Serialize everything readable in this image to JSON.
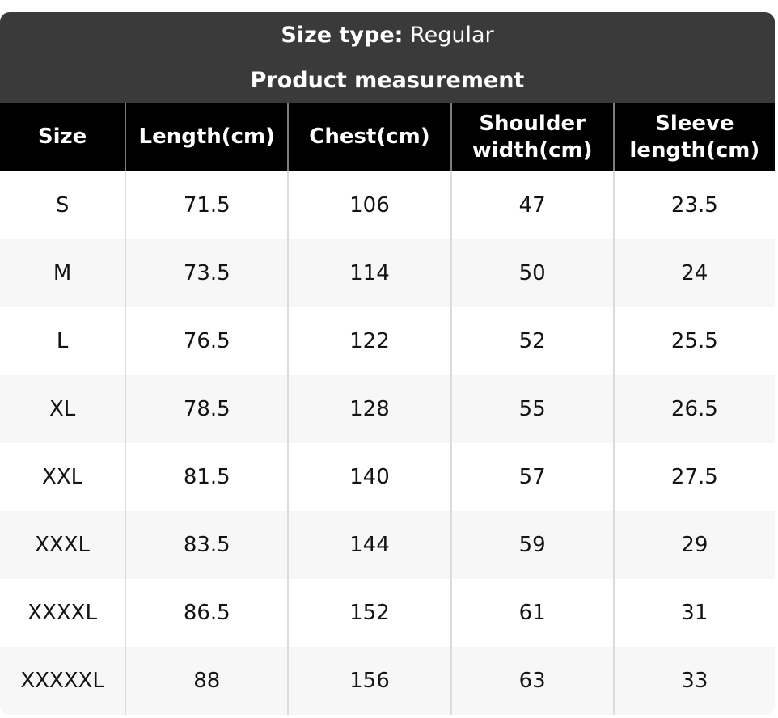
{
  "header": {
    "size_type_label": "Size type:",
    "size_type_value": " Regular",
    "subtitle": "Product measurement"
  },
  "table": {
    "columns": [
      "Size",
      "Length(cm)",
      "Chest(cm)",
      "Shoulder width(cm)",
      "Sleeve length(cm)"
    ],
    "rows": [
      [
        "S",
        "71.5",
        "106",
        "47",
        "23.5"
      ],
      [
        "M",
        "73.5",
        "114",
        "50",
        "24"
      ],
      [
        "L",
        "76.5",
        "122",
        "52",
        "25.5"
      ],
      [
        "XL",
        "78.5",
        "128",
        "55",
        "26.5"
      ],
      [
        "XXL",
        "81.5",
        "140",
        "57",
        "27.5"
      ],
      [
        "XXXL",
        "83.5",
        "144",
        "59",
        "29"
      ],
      [
        "XXXXL",
        "86.5",
        "152",
        "61",
        "31"
      ],
      [
        "XXXXXL",
        "88",
        "156",
        "63",
        "33"
      ]
    ]
  },
  "colors": {
    "card_header_bg": "#3a3a3a",
    "table_header_bg": "#000000",
    "table_header_text": "#ffffff",
    "row_bg": "#ffffff",
    "row_alt_bg": "#f7f7f7",
    "body_text": "#141414",
    "header_divider": "#7d7d7d",
    "body_divider": "#dcdcdc"
  }
}
